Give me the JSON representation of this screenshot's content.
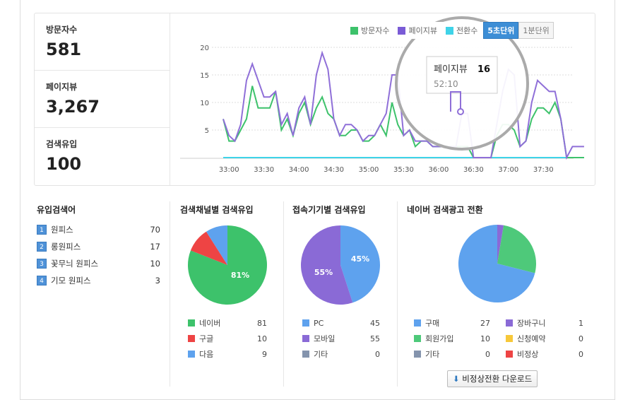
{
  "stats": [
    {
      "label": "방문자수",
      "value": "581"
    },
    {
      "label": "페이지뷰",
      "value": "3,267"
    },
    {
      "label": "검색유입",
      "value": "100"
    }
  ],
  "legend": {
    "visitors": "방문자수",
    "pageviews": "페이지뷰",
    "conversions": "전환수",
    "unit_5s": "5초단위",
    "unit_1m": "1분단위"
  },
  "colors": {
    "visitors": "#3dc26b",
    "pageviews": "#8f6fd8",
    "conversions": "#3fd3e8",
    "blue": "#5ea2ee",
    "red": "#ee4444",
    "purple": "#8a6ad6",
    "green": "#4ec97a",
    "gray": "#8494ad",
    "yellow": "#f7c83a"
  },
  "tooltip": {
    "label": "페이지뷰",
    "value": "16",
    "time": "52:10"
  },
  "chart_data": {
    "type": "line",
    "x_ticks": [
      "33:00",
      "33:30",
      "34:00",
      "34:30",
      "35:00",
      "35:30",
      "36:00",
      "36:30",
      "37:00",
      "37:30"
    ],
    "y_ticks": [
      "5",
      "10",
      "15",
      "20"
    ],
    "ylim": [
      0,
      20
    ],
    "x_step_seconds": 5,
    "x_start": "32:55",
    "series": [
      {
        "name": "페이지뷰",
        "values": [
          7,
          4,
          3,
          6,
          14,
          17,
          14,
          11,
          11,
          12,
          6,
          8,
          4,
          9,
          11,
          6,
          15,
          19,
          16,
          7,
          4,
          6,
          6,
          5,
          3,
          4,
          4,
          6,
          8,
          15,
          15,
          4,
          5,
          3,
          3,
          3,
          2,
          2,
          2,
          2,
          2,
          8,
          8,
          0,
          0,
          0,
          0,
          6,
          12,
          16,
          15,
          2,
          3,
          10,
          14,
          13,
          12,
          12,
          7,
          0,
          2,
          2,
          2
        ]
      },
      {
        "name": "방문자수",
        "values": [
          7,
          3,
          3,
          5,
          7,
          13,
          9,
          9,
          9,
          12,
          5,
          7,
          4,
          8,
          10,
          6,
          9,
          11,
          8,
          7,
          4,
          4,
          5,
          5,
          3,
          3,
          4,
          6,
          4,
          10,
          6,
          4,
          5,
          2,
          3,
          3,
          2,
          2,
          2,
          2,
          2,
          2,
          2,
          0,
          0,
          0,
          0,
          4,
          6,
          6,
          5,
          2,
          3,
          7,
          9,
          9,
          8,
          10,
          7,
          0,
          0,
          0,
          0
        ]
      },
      {
        "name": "전환수",
        "values": [
          0,
          0,
          0,
          0,
          0,
          0,
          0,
          0,
          0,
          0,
          0,
          0,
          0,
          0,
          0,
          0,
          0,
          0,
          0,
          0,
          0,
          0,
          0,
          0,
          0,
          0,
          0,
          0,
          0,
          0,
          0,
          0,
          0,
          0,
          0,
          0,
          0,
          0,
          0,
          0,
          0,
          0,
          0,
          0,
          0,
          0,
          0,
          0,
          0,
          0,
          0,
          0,
          0,
          0,
          0,
          0,
          0,
          0,
          0,
          0,
          0,
          0,
          0
        ]
      }
    ]
  },
  "keywords": {
    "title": "유입검색어",
    "items": [
      {
        "rank": "1",
        "term": "원피스",
        "count": "70"
      },
      {
        "rank": "2",
        "term": "롱원피스",
        "count": "17"
      },
      {
        "rank": "3",
        "term": "꽃무늬 원피스",
        "count": "10"
      },
      {
        "rank": "4",
        "term": "기모 원피스",
        "count": "3"
      }
    ]
  },
  "channel": {
    "title": "검색채널별 검색유입",
    "label": "81%",
    "items": [
      {
        "name": "네이버",
        "value": 81,
        "color": "#3dc26b"
      },
      {
        "name": "구글",
        "value": 10,
        "color": "#ee4444"
      },
      {
        "name": "다음",
        "value": 9,
        "color": "#5ea2ee"
      }
    ]
  },
  "device": {
    "title": "접속기기별 검색유입",
    "label_pc": "45%",
    "label_mobile": "55%",
    "items": [
      {
        "name": "PC",
        "value": 45,
        "color": "#5ea2ee"
      },
      {
        "name": "모바일",
        "value": 55,
        "color": "#8a6ad6"
      },
      {
        "name": "기타",
        "value": 0,
        "color": "#8494ad"
      }
    ]
  },
  "naver": {
    "title": "네이버 검색광고 전환",
    "download": "비정상전환 다운로드",
    "items": [
      {
        "name": "구매",
        "value": 27,
        "color": "#5ea2ee"
      },
      {
        "name": "장바구니",
        "value": 1,
        "color": "#8a6ad6"
      },
      {
        "name": "회원가입",
        "value": 10,
        "color": "#4ec97a"
      },
      {
        "name": "신청예약",
        "value": 0,
        "color": "#f7c83a"
      },
      {
        "name": "기타",
        "value": 0,
        "color": "#8494ad"
      },
      {
        "name": "비정상",
        "value": 0,
        "color": "#ee4444"
      }
    ]
  }
}
